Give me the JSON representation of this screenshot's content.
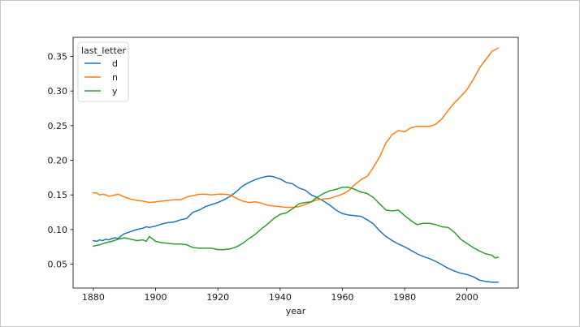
{
  "chart_data": {
    "type": "line",
    "title": "",
    "xlabel": "year",
    "ylabel": "",
    "xlim": [
      1873.5,
      2016.5
    ],
    "ylim": [
      0.0155,
      0.3775
    ],
    "xticks": [
      1880,
      1900,
      1920,
      1940,
      1960,
      1980,
      2000
    ],
    "yticks": [
      0.05,
      0.1,
      0.15,
      0.2,
      0.25,
      0.3,
      0.35
    ],
    "ytick_labels": [
      "0.05",
      "0.10",
      "0.15",
      "0.20",
      "0.25",
      "0.30",
      "0.35"
    ],
    "grid": false,
    "legend": {
      "title": "last_letter",
      "location": "upper-left"
    },
    "series": [
      {
        "name": "d",
        "color": "#1f77b4",
        "x": [
          1880,
          1881,
          1882,
          1883,
          1884,
          1885,
          1886,
          1887,
          1888,
          1889,
          1890,
          1892,
          1894,
          1896,
          1897,
          1898,
          1900,
          1902,
          1904,
          1906,
          1908,
          1910,
          1912,
          1914,
          1916,
          1918,
          1920,
          1922,
          1924,
          1926,
          1928,
          1930,
          1932,
          1934,
          1936,
          1937,
          1938,
          1940,
          1942,
          1944,
          1945,
          1946,
          1948,
          1950,
          1952,
          1954,
          1956,
          1958,
          1960,
          1962,
          1964,
          1966,
          1968,
          1970,
          1972,
          1974,
          1976,
          1978,
          1980,
          1982,
          1984,
          1986,
          1988,
          1990,
          1992,
          1994,
          1996,
          1998,
          2000,
          2002,
          2004,
          2006,
          2008,
          2010
        ],
        "y": [
          0.084,
          0.083,
          0.085,
          0.084,
          0.086,
          0.085,
          0.087,
          0.088,
          0.087,
          0.091,
          0.094,
          0.097,
          0.1,
          0.102,
          0.104,
          0.103,
          0.105,
          0.108,
          0.11,
          0.111,
          0.114,
          0.116,
          0.125,
          0.128,
          0.133,
          0.136,
          0.139,
          0.143,
          0.148,
          0.155,
          0.163,
          0.168,
          0.172,
          0.175,
          0.177,
          0.177,
          0.176,
          0.173,
          0.168,
          0.166,
          0.163,
          0.16,
          0.157,
          0.15,
          0.146,
          0.141,
          0.135,
          0.128,
          0.123,
          0.121,
          0.12,
          0.119,
          0.114,
          0.108,
          0.098,
          0.09,
          0.084,
          0.079,
          0.075,
          0.07,
          0.065,
          0.061,
          0.058,
          0.054,
          0.049,
          0.044,
          0.04,
          0.037,
          0.035,
          0.032,
          0.027,
          0.025,
          0.024,
          0.024
        ]
      },
      {
        "name": "n",
        "color": "#ff7f0e",
        "x": [
          1880,
          1881,
          1882,
          1883,
          1884,
          1885,
          1886,
          1888,
          1889,
          1890,
          1892,
          1894,
          1896,
          1898,
          1900,
          1902,
          1904,
          1906,
          1908,
          1910,
          1912,
          1914,
          1916,
          1918,
          1920,
          1922,
          1924,
          1926,
          1928,
          1930,
          1932,
          1934,
          1936,
          1938,
          1940,
          1942,
          1944,
          1946,
          1948,
          1950,
          1952,
          1954,
          1956,
          1958,
          1960,
          1962,
          1964,
          1966,
          1968,
          1970,
          1972,
          1974,
          1976,
          1978,
          1980,
          1982,
          1984,
          1986,
          1988,
          1990,
          1992,
          1994,
          1996,
          1998,
          2000,
          2002,
          2004,
          2006,
          2008,
          2010
        ],
        "y": [
          0.153,
          0.153,
          0.15,
          0.151,
          0.15,
          0.148,
          0.149,
          0.151,
          0.149,
          0.147,
          0.144,
          0.142,
          0.141,
          0.139,
          0.14,
          0.141,
          0.142,
          0.143,
          0.143,
          0.147,
          0.149,
          0.151,
          0.151,
          0.15,
          0.151,
          0.151,
          0.15,
          0.145,
          0.141,
          0.139,
          0.14,
          0.138,
          0.135,
          0.134,
          0.133,
          0.132,
          0.132,
          0.133,
          0.136,
          0.14,
          0.143,
          0.144,
          0.145,
          0.148,
          0.151,
          0.156,
          0.165,
          0.172,
          0.177,
          0.19,
          0.205,
          0.225,
          0.237,
          0.243,
          0.241,
          0.247,
          0.249,
          0.249,
          0.249,
          0.252,
          0.26,
          0.272,
          0.283,
          0.292,
          0.302,
          0.316,
          0.333,
          0.345,
          0.357,
          0.362
        ]
      },
      {
        "name": "y",
        "color": "#2ca02c",
        "x": [
          1880,
          1882,
          1884,
          1886,
          1888,
          1890,
          1892,
          1894,
          1896,
          1897,
          1898,
          1900,
          1902,
          1904,
          1906,
          1908,
          1910,
          1912,
          1914,
          1916,
          1918,
          1920,
          1922,
          1924,
          1926,
          1928,
          1930,
          1932,
          1934,
          1936,
          1938,
          1940,
          1942,
          1944,
          1946,
          1948,
          1950,
          1952,
          1954,
          1956,
          1958,
          1960,
          1962,
          1964,
          1966,
          1968,
          1970,
          1972,
          1974,
          1976,
          1978,
          1980,
          1982,
          1984,
          1986,
          1988,
          1990,
          1992,
          1994,
          1996,
          1998,
          2000,
          2002,
          2004,
          2006,
          2008,
          2009,
          2010
        ],
        "y": [
          0.076,
          0.078,
          0.081,
          0.083,
          0.086,
          0.088,
          0.086,
          0.084,
          0.085,
          0.083,
          0.09,
          0.083,
          0.081,
          0.08,
          0.079,
          0.079,
          0.078,
          0.074,
          0.073,
          0.073,
          0.073,
          0.071,
          0.071,
          0.072,
          0.075,
          0.08,
          0.087,
          0.093,
          0.101,
          0.108,
          0.116,
          0.122,
          0.124,
          0.13,
          0.137,
          0.139,
          0.14,
          0.147,
          0.152,
          0.156,
          0.158,
          0.161,
          0.161,
          0.158,
          0.154,
          0.152,
          0.146,
          0.137,
          0.128,
          0.127,
          0.128,
          0.12,
          0.113,
          0.107,
          0.109,
          0.109,
          0.107,
          0.104,
          0.103,
          0.096,
          0.086,
          0.08,
          0.074,
          0.069,
          0.065,
          0.063,
          0.059,
          0.06
        ]
      }
    ]
  }
}
